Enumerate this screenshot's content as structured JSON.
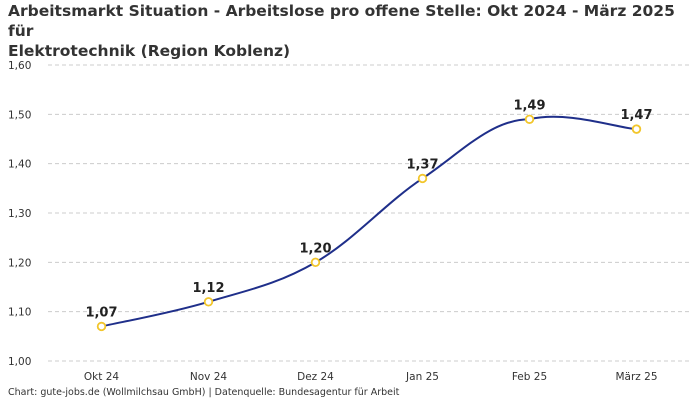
{
  "title_lines": [
    "Arbeitsmarkt Situation - Arbeitslose pro offene Stelle: Okt 2024 - März 2025 für",
    "Elektrotechnik (Region Koblenz)"
  ],
  "source": "Chart: gute-jobs.de (Wollmilchsau GmbH) | Datenquelle: Bundesagentur für Arbeit",
  "colors": {
    "line": "#1f2f8a",
    "marker_stroke": "#f2c62c",
    "marker_fill": "#ffffff",
    "grid": "#cccccc"
  },
  "chart_data": {
    "type": "line",
    "title": "Arbeitsmarkt Situation - Arbeitslose pro offene Stelle: Okt 2024 - März 2025 für Elektrotechnik (Region Koblenz)",
    "categories": [
      "Okt 24",
      "Nov 24",
      "Dez 24",
      "Jan 25",
      "Feb 25",
      "März 25"
    ],
    "values": [
      1.07,
      1.12,
      1.2,
      1.37,
      1.49,
      1.47
    ],
    "value_labels": [
      "1,07",
      "1,12",
      "1,20",
      "1,37",
      "1,49",
      "1,47"
    ],
    "ylim": [
      1.0,
      1.6
    ],
    "yticks": [
      1.0,
      1.1,
      1.2,
      1.3,
      1.4,
      1.5,
      1.6
    ],
    "ytick_labels": [
      "1,00",
      "1,10",
      "1,20",
      "1,30",
      "1,40",
      "1,50",
      "1,60"
    ],
    "xlabel": "",
    "ylabel": "",
    "grid": true,
    "legend": "none",
    "curve": "smooth"
  }
}
